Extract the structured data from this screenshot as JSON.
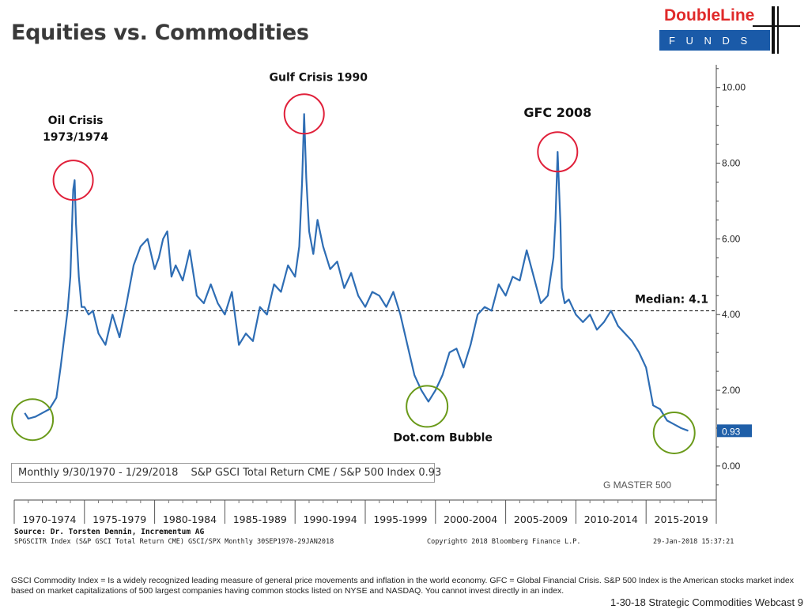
{
  "page": {
    "title": "Equities vs. Commodities",
    "footer": "1-30-18 Strategic Commodities Webcast  9",
    "footnote": "GSCI Commodity Index =  Is a widely recognized leading measure of general price movements and inflation in the world economy. GFC = Global Financial Crisis. S&P 500 Index is the American stocks market index based on market capitalizations of 500 largest companies having common stocks listed on NYSE and NASDAQ. You cannot invest directly in an index."
  },
  "logo": {
    "name": "DoubleLine",
    "sub": "F U N D S",
    "colors": {
      "red": "#e02a2a",
      "blue": "#1a5aa8"
    }
  },
  "legend": {
    "period": "Monthly 9/30/1970 - 1/29/2018",
    "series_label": "S&P GSCI Total Return CME / S&P 500 Index 0.93"
  },
  "watermark": "G MASTER 500",
  "source": {
    "line1": "Source: Dr. Torsten Dennin, Incrementum AG",
    "line2": "SPGSCITR Index (S&P GSCI Total Return CME) GSCI/SPX  Monthly 30SEP1970-29JAN2018",
    "copyright": "Copyright© 2018 Bloomberg Finance L.P.",
    "timestamp": "29-Jan-2018 15:37:21"
  },
  "colors": {
    "series": "#2e6db4",
    "crisis_circle": "#e0203a",
    "trough_circle": "#6a9a1a",
    "last_value_box": "#1f5fa8"
  },
  "chart_data": {
    "type": "line",
    "yaxis": {
      "side": "right",
      "ylim": [
        -0.9,
        10.6
      ],
      "ticks": [
        0,
        2,
        4,
        6,
        8,
        10
      ],
      "tick_labels": [
        "0.00",
        "2.00",
        "4.00",
        "6.00",
        "8.00",
        "10.00"
      ]
    },
    "xaxis": {
      "range": [
        1970.0,
        2020.0
      ],
      "categories": [
        "1970-1974",
        "1975-1979",
        "1980-1984",
        "1985-1989",
        "1990-1994",
        "1995-1999",
        "2000-2004",
        "2005-2009",
        "2010-2014",
        "2015-2019"
      ]
    },
    "median": {
      "value": 4.1,
      "label": "Median: 4.1"
    },
    "last_value": {
      "value": 0.93,
      "label": "0.93"
    },
    "series": [
      {
        "x": [
          1970.75,
          1971.0,
          1971.5,
          1972.0,
          1972.5,
          1973.0,
          1973.3,
          1973.6,
          1973.8,
          1974.0,
          1974.2,
          1974.3,
          1974.4,
          1974.6,
          1974.8,
          1975.0,
          1975.3,
          1975.6,
          1976.0,
          1976.5,
          1977.0,
          1977.5,
          1978.0,
          1978.5,
          1979.0,
          1979.5,
          1980.0,
          1980.3,
          1980.6,
          1980.9,
          1981.2,
          1981.5,
          1982.0,
          1982.5,
          1983.0,
          1983.5,
          1984.0,
          1984.5,
          1985.0,
          1985.5,
          1986.0,
          1986.5,
          1987.0,
          1987.5,
          1988.0,
          1988.5,
          1989.0,
          1989.5,
          1990.0,
          1990.3,
          1990.5,
          1990.65,
          1990.8,
          1991.0,
          1991.3,
          1991.6,
          1992.0,
          1992.5,
          1993.0,
          1993.5,
          1994.0,
          1994.5,
          1995.0,
          1995.5,
          1996.0,
          1996.5,
          1997.0,
          1997.5,
          1998.0,
          1998.5,
          1999.0,
          1999.5,
          2000.0,
          2000.5,
          2001.0,
          2001.5,
          2002.0,
          2002.5,
          2003.0,
          2003.5,
          2004.0,
          2004.5,
          2005.0,
          2005.5,
          2006.0,
          2006.5,
          2007.0,
          2007.5,
          2008.0,
          2008.4,
          2008.55,
          2008.7,
          2008.9,
          2009.0,
          2009.2,
          2009.5,
          2010.0,
          2010.5,
          2011.0,
          2011.5,
          2012.0,
          2012.5,
          2013.0,
          2013.5,
          2014.0,
          2014.5,
          2015.0,
          2015.5,
          2016.0,
          2016.5,
          2017.0,
          2017.5,
          2018.0
        ],
        "values": [
          1.4,
          1.25,
          1.3,
          1.4,
          1.5,
          1.8,
          2.6,
          3.5,
          4.1,
          5.0,
          7.3,
          7.55,
          6.4,
          5.0,
          4.2,
          4.2,
          4.0,
          4.1,
          3.5,
          3.2,
          4.0,
          3.4,
          4.3,
          5.3,
          5.8,
          6.0,
          5.2,
          5.5,
          6.0,
          6.2,
          5.0,
          5.3,
          4.9,
          5.7,
          4.5,
          4.3,
          4.8,
          4.3,
          4.0,
          4.6,
          3.2,
          3.5,
          3.3,
          4.2,
          4.0,
          4.8,
          4.6,
          5.3,
          5.0,
          5.8,
          7.5,
          9.3,
          7.6,
          6.2,
          5.6,
          6.5,
          5.8,
          5.2,
          5.4,
          4.7,
          5.1,
          4.5,
          4.2,
          4.6,
          4.5,
          4.2,
          4.6,
          4.0,
          3.2,
          2.4,
          2.0,
          1.7,
          2.0,
          2.4,
          3.0,
          3.1,
          2.6,
          3.2,
          4.0,
          4.2,
          4.1,
          4.8,
          4.5,
          5.0,
          4.9,
          5.7,
          5.0,
          4.3,
          4.5,
          5.5,
          6.5,
          8.3,
          6.4,
          4.7,
          4.3,
          4.4,
          4.0,
          3.8,
          4.0,
          3.6,
          3.8,
          4.1,
          3.7,
          3.5,
          3.3,
          3.0,
          2.6,
          1.6,
          1.5,
          1.2,
          1.1,
          1.0,
          0.93
        ]
      }
    ],
    "annotations": [
      {
        "text": "Oil Crisis",
        "text2": "1973/1974",
        "x": 1974.2,
        "y": 7.55,
        "circle": "crisis"
      },
      {
        "text": "Gulf Crisis 1990",
        "x": 1990.65,
        "y": 9.3,
        "circle": "crisis"
      },
      {
        "text": "GFC 2008",
        "x": 2008.7,
        "y": 8.3,
        "circle": "crisis"
      },
      {
        "text": "Dot.com Bubble",
        "x": 1999.4,
        "y": 1.7,
        "circle": "trough"
      },
      {
        "x": 1971.3,
        "y": 1.35,
        "circle": "trough"
      },
      {
        "x": 2017.0,
        "y": 1.0,
        "circle": "trough"
      }
    ]
  }
}
